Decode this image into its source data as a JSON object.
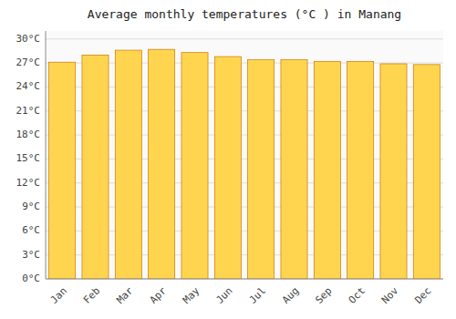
{
  "chart_data": {
    "type": "bar",
    "title": "Average monthly temperatures (°C ) in Manang",
    "categories": [
      "Jan",
      "Feb",
      "Mar",
      "Apr",
      "May",
      "Jun",
      "Jul",
      "Aug",
      "Sep",
      "Oct",
      "Nov",
      "Dec"
    ],
    "values": [
      27.1,
      28.0,
      28.6,
      28.7,
      28.3,
      27.8,
      27.4,
      27.4,
      27.2,
      27.2,
      26.9,
      26.8
    ],
    "color": "#FFD54F",
    "ylim": [
      0,
      31
    ],
    "yticks": [
      {
        "value": 0,
        "label": "0°C"
      },
      {
        "value": 3,
        "label": "3°C"
      },
      {
        "value": 6,
        "label": "6°C"
      },
      {
        "value": 9,
        "label": "9°C"
      },
      {
        "value": 12,
        "label": "12°C"
      },
      {
        "value": 15,
        "label": "15°C"
      },
      {
        "value": 18,
        "label": "18°C"
      },
      {
        "value": 21,
        "label": "21°C"
      },
      {
        "value": 24,
        "label": "24°C"
      },
      {
        "value": 27,
        "label": "27°C"
      },
      {
        "value": 30,
        "label": "30°C"
      }
    ],
    "grid": true
  }
}
